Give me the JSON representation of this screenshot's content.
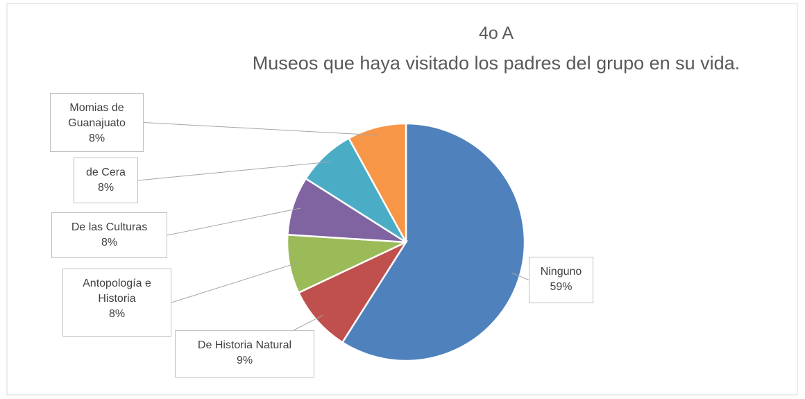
{
  "chart_data": {
    "type": "pie",
    "title": "4o A",
    "subtitle": "Museos que haya visitado los padres del grupo en su vida.",
    "categories": [
      "Ninguno",
      "De Historia Natural",
      "Antopología e Historia",
      "De las Culturas",
      "de Cera",
      "Momias de Guanajuato"
    ],
    "values": [
      59,
      9,
      8,
      8,
      8,
      8
    ],
    "value_labels": [
      "59%",
      "9%",
      "8%",
      "8%",
      "8%",
      "8%"
    ],
    "colors": [
      "#4f81bd",
      "#c0504d",
      "#9bbb59",
      "#8064a2",
      "#4bacc6",
      "#f79646"
    ]
  }
}
